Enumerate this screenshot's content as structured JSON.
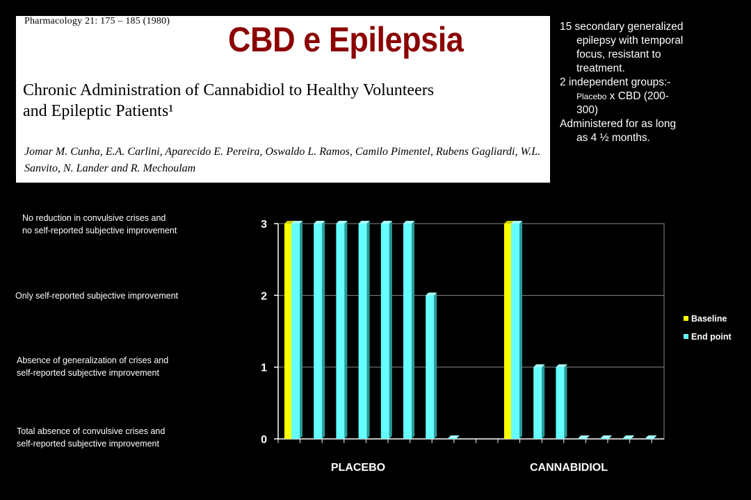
{
  "paper": {
    "journal": "Pharmacology 21: 175 – 185 (1980)",
    "title": "Chronic Administration of Cannabidiol to Healthy Volunteers\nand Epileptic Patients¹",
    "authors": "Jomar M. Cunha, E.A. Carlini, Aparecido E. Pereira, Oswaldo L. Ramos, Camilo Pimentel, Rubens Gagliardi, W.L. Sanvito, N. Lander and R. Mechoulam"
  },
  "slide_title": "CBD e Epilepsia",
  "notes": {
    "line1": "15 secondary generalized",
    "line2": "epilepsy with temporal",
    "line3": "focus, resistant to",
    "line4": "treatment.",
    "line5": "2 independent groups:-",
    "line6a": "Placebo",
    "line6b": " x CBD (200-",
    "line7": "300)",
    "line8": "Administered for as long",
    "line9": "as  4 ½  months."
  },
  "category_labels": {
    "c3": "No reduction in convulsive crises and\nno self-reported subjective improvement",
    "c2": "Only self-reported subjective improvement",
    "c1": "Absence of generalization of crises and\nself-reported subjective improvement",
    "c0": "Total absence of convulsive crises and\nself-reported subjective improvement"
  },
  "chart_data": {
    "type": "bar",
    "y_ticks": [
      "0",
      "1",
      "2",
      "3"
    ],
    "ylim": [
      0,
      3
    ],
    "groups": [
      {
        "label": "PLACEBO",
        "baseline": 3,
        "end_point": [
          3,
          3,
          3,
          3,
          3,
          3,
          2,
          0
        ]
      },
      {
        "label": "CANNABIDIOL",
        "baseline": 3,
        "end_point": [
          3,
          1,
          1,
          0,
          0,
          0,
          0
        ]
      }
    ],
    "legend": [
      {
        "name": "Baseline",
        "color": "#ffff00"
      },
      {
        "name": "End point",
        "color": "#66ffff"
      }
    ],
    "legend_position": "right",
    "grid": true
  }
}
